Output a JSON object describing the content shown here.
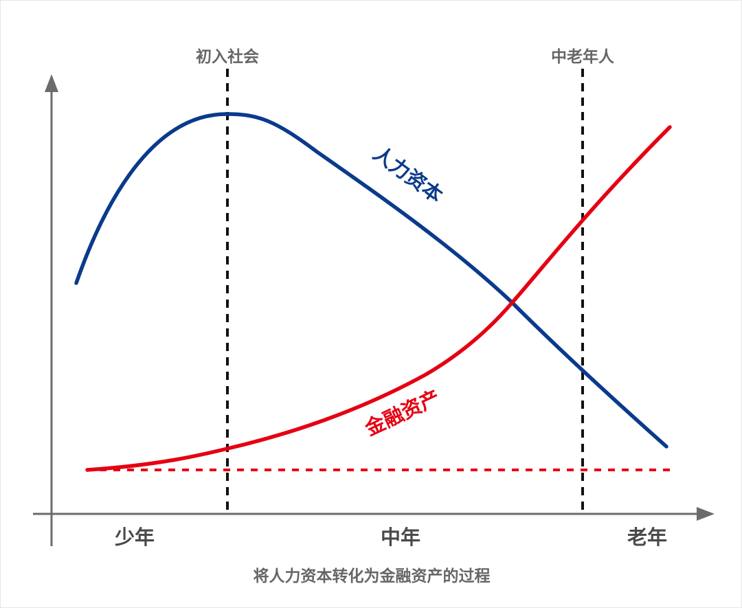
{
  "diagram": {
    "markers": {
      "enter_society": "初入社会",
      "middle_elderly": "中老年人"
    },
    "curves": {
      "human_capital": "人力资本",
      "financial_assets": "金融资产"
    },
    "x_labels": {
      "youth": "少年",
      "middle": "中年",
      "old": "老年"
    },
    "caption": "将人力资本转化为金融资产的过程",
    "colors": {
      "human_capital": "#0a3a8c",
      "financial_assets": "#e50012",
      "axis": "#6b6b6b",
      "marker_line": "#111111"
    }
  }
}
